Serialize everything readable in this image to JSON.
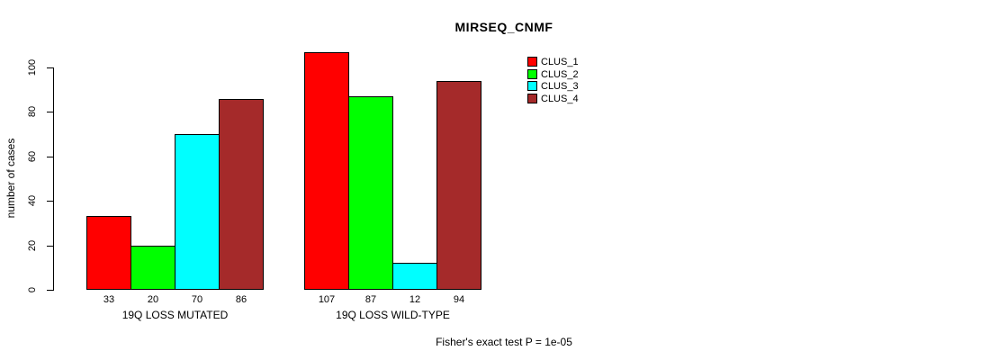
{
  "title": "MIRSEQ_CNMF",
  "footer": "Fisher's exact test P = 1e-05",
  "chart_data": {
    "type": "bar",
    "title": "MIRSEQ_CNMF",
    "xlabel": "",
    "ylabel": "number of cases",
    "ylim": [
      0,
      100
    ],
    "yticks": [
      0,
      20,
      40,
      60,
      80,
      100
    ],
    "grid": false,
    "legend_position": "top-right",
    "categories": [
      "19Q LOSS MUTATED",
      "19Q LOSS WILD-TYPE"
    ],
    "series": [
      {
        "name": "CLUS_1",
        "color": "#ff0000",
        "values": [
          33,
          107
        ]
      },
      {
        "name": "CLUS_2",
        "color": "#00ff00",
        "values": [
          20,
          87
        ]
      },
      {
        "name": "CLUS_3",
        "color": "#00ffff",
        "values": [
          70,
          12
        ]
      },
      {
        "name": "CLUS_4",
        "color": "#a52a2a",
        "values": [
          86,
          94
        ]
      }
    ],
    "bar_labels": [
      [
        "33",
        "20",
        "70",
        "86"
      ],
      [
        "107",
        "87",
        "12",
        "94"
      ]
    ],
    "annotation": "Fisher's exact test P = 1e-05"
  }
}
